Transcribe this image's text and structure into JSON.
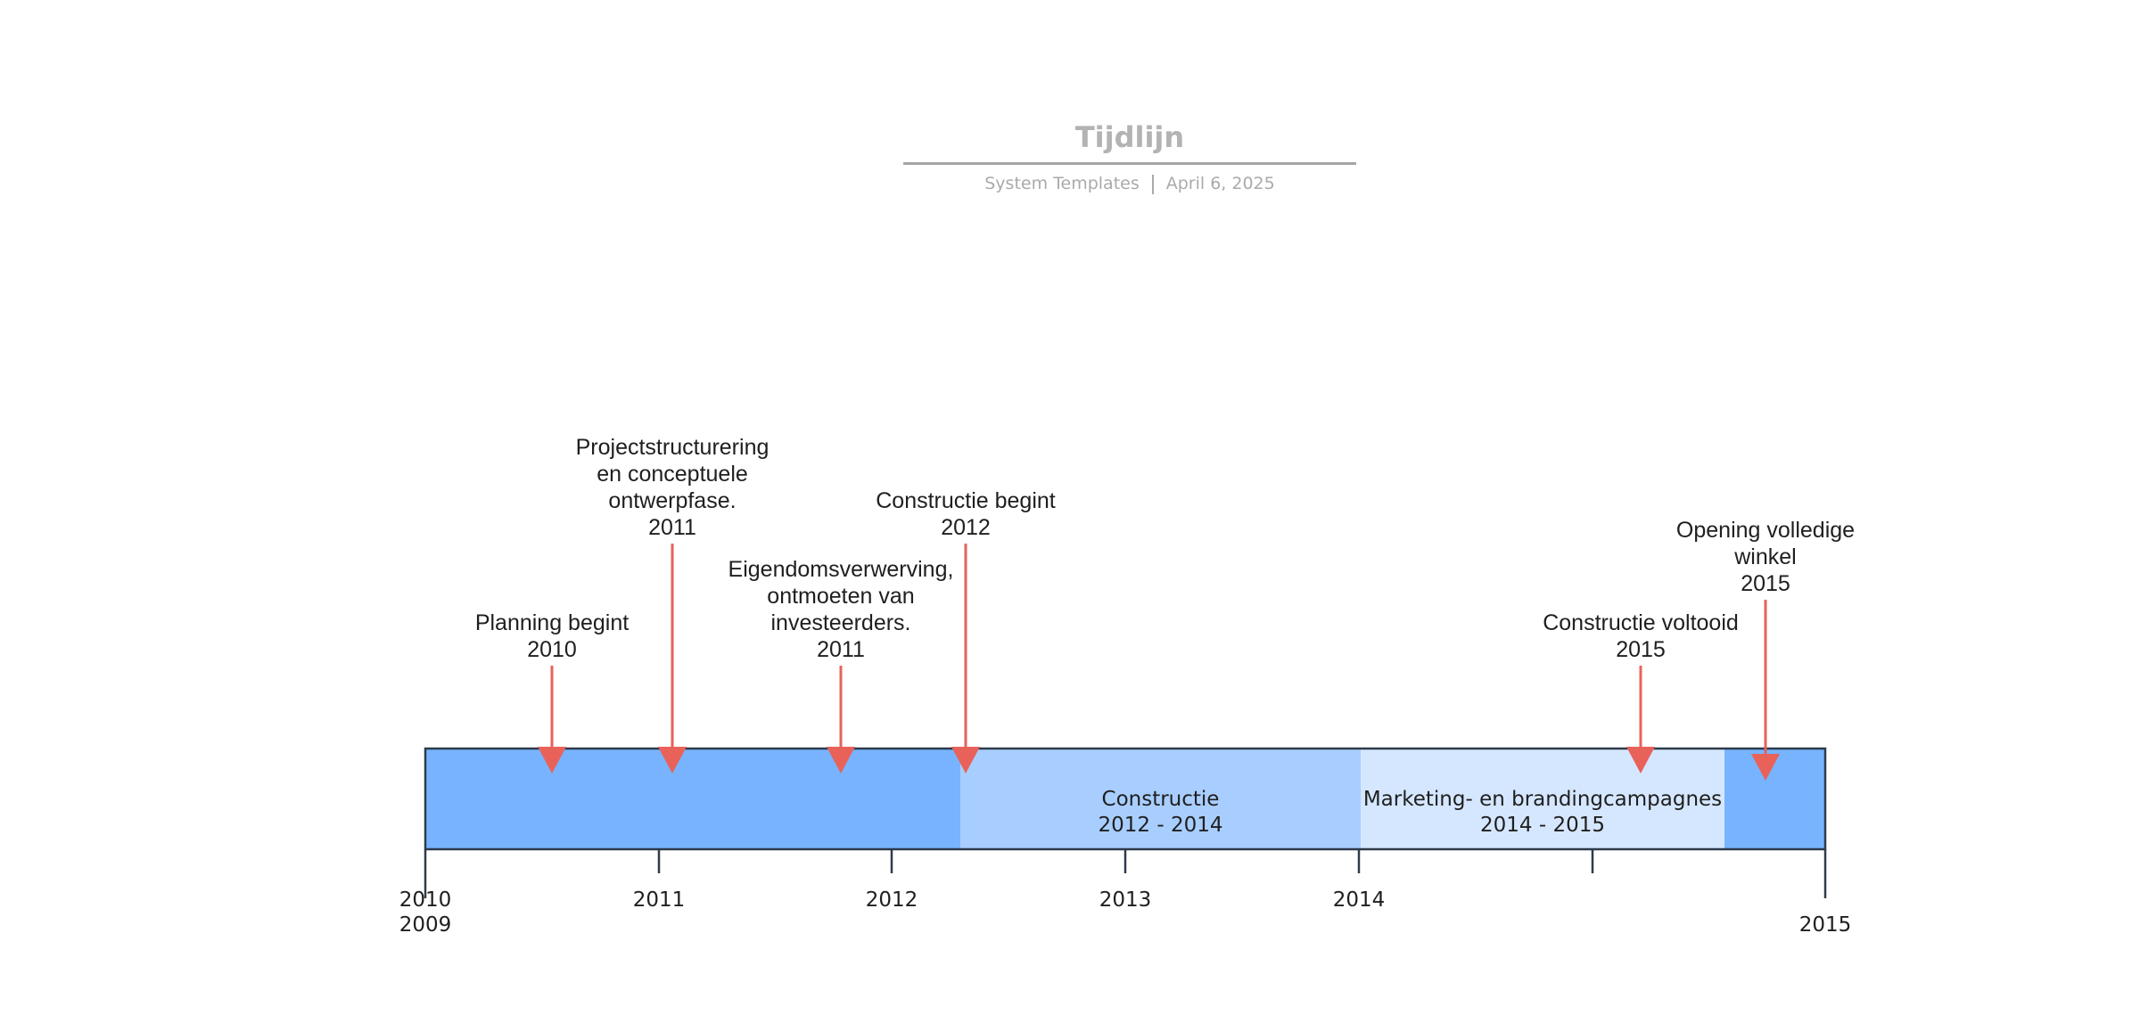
{
  "header": {
    "title": "Tijdlijn",
    "author": "System Templates",
    "date": "April 6, 2025"
  },
  "colors": {
    "bar_dark": "#77b3ff",
    "band_construction": "#a8ceff",
    "band_marketing": "#d5e7ff",
    "marker": "#e8625a",
    "axis": "#2e3b4b"
  },
  "timeline": {
    "start_label": "2009",
    "end_label": "2015",
    "ticks": [
      "2010",
      "2011",
      "2012",
      "2013",
      "2014",
      "2015"
    ],
    "bands": [
      {
        "name": "Constructie",
        "range": "2012 - 2014",
        "color": "#a8ceff"
      },
      {
        "name": "Marketing- en brandingcampagnes",
        "range": "2014 - 2015",
        "color": "#d5e7ff"
      }
    ],
    "milestones": [
      {
        "lines": [
          "Planning begint"
        ],
        "year": "2010"
      },
      {
        "lines": [
          "Projectstructurering",
          "en conceptuele",
          "ontwerpfase."
        ],
        "year": "2011"
      },
      {
        "lines": [
          "Eigendomsverwerving,",
          "ontmoeten van",
          "investeerders."
        ],
        "year": "2011"
      },
      {
        "lines": [
          "Constructie begint"
        ],
        "year": "2012"
      },
      {
        "lines": [
          "Constructie voltooid"
        ],
        "year": "2015"
      },
      {
        "lines": [
          "Opening volledige",
          "winkel"
        ],
        "year": "2015"
      }
    ]
  }
}
